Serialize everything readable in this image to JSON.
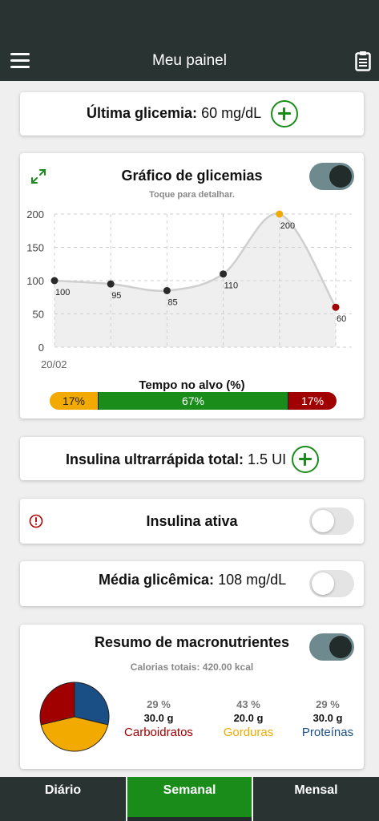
{
  "header": {
    "title": "Meu painel",
    "menu_icon": "hamburger-menu-icon",
    "clipboard_icon": "clipboard-icon"
  },
  "last_glucose": {
    "label": "Última glicemia:",
    "value": "60 mg/dL"
  },
  "glucose_chart": {
    "title": "Gráfico de glicemias",
    "subtitle": "Toque para detalhar.",
    "toggle_on": true,
    "expand_icon": "expand-arrows-icon",
    "date_label": "20/02",
    "time_in_range_title": "Tempo no alvo (%)",
    "time_in_range": [
      {
        "label": "17%",
        "value": 17,
        "color": "#f2a900"
      },
      {
        "label": "67%",
        "value": 67,
        "color": "#1a8c1a"
      },
      {
        "label": "17%",
        "value": 17,
        "color": "#a00000"
      }
    ]
  },
  "chart_data": {
    "type": "line",
    "x": [
      1,
      2,
      3,
      4,
      5,
      6
    ],
    "values": [
      100,
      95,
      85,
      110,
      200,
      60
    ],
    "point_labels": [
      "100",
      "95",
      "85",
      "110",
      "200",
      "60"
    ],
    "point_colors": [
      "#2a2a2a",
      "#2a2a2a",
      "#2a2a2a",
      "#2a2a2a",
      "#f2a900",
      "#a00000"
    ],
    "ylim": [
      0,
      200
    ],
    "yticks": [
      0,
      50,
      100,
      150,
      200
    ],
    "ytick_labels": [
      "0",
      "50",
      "100",
      "150",
      "200"
    ],
    "xlabel": "",
    "ylabel": "",
    "grid": true
  },
  "insulin_total": {
    "label": "Insulina ultrarrápida total:",
    "value": "1.5 UI"
  },
  "active_insulin": {
    "label": "Insulina ativa",
    "toggle_on": false,
    "alert_icon": "alert-circle-icon"
  },
  "average_glucose": {
    "label": "Média glicêmica:",
    "value": "108 mg/dL",
    "toggle_on": false
  },
  "macros": {
    "title": "Resumo de macronutrientes",
    "toggle_on": true,
    "calories": "Calorias totais: 420.00 kcal",
    "items": [
      {
        "pct": "29 %",
        "grams": "30.0 g",
        "name": "Carboidratos",
        "color": "#a00000",
        "share": 29
      },
      {
        "pct": "43 %",
        "grams": "20.0 g",
        "name": "Gorduras",
        "color": "#f2a900",
        "share": 43
      },
      {
        "pct": "29 %",
        "grams": "30.0 g",
        "name": "Proteínas",
        "color": "#1a4f86",
        "share": 29
      }
    ]
  },
  "tabs": [
    {
      "label": "Diário",
      "active": false
    },
    {
      "label": "Semanal",
      "active": true
    },
    {
      "label": "Mensal",
      "active": false
    }
  ]
}
